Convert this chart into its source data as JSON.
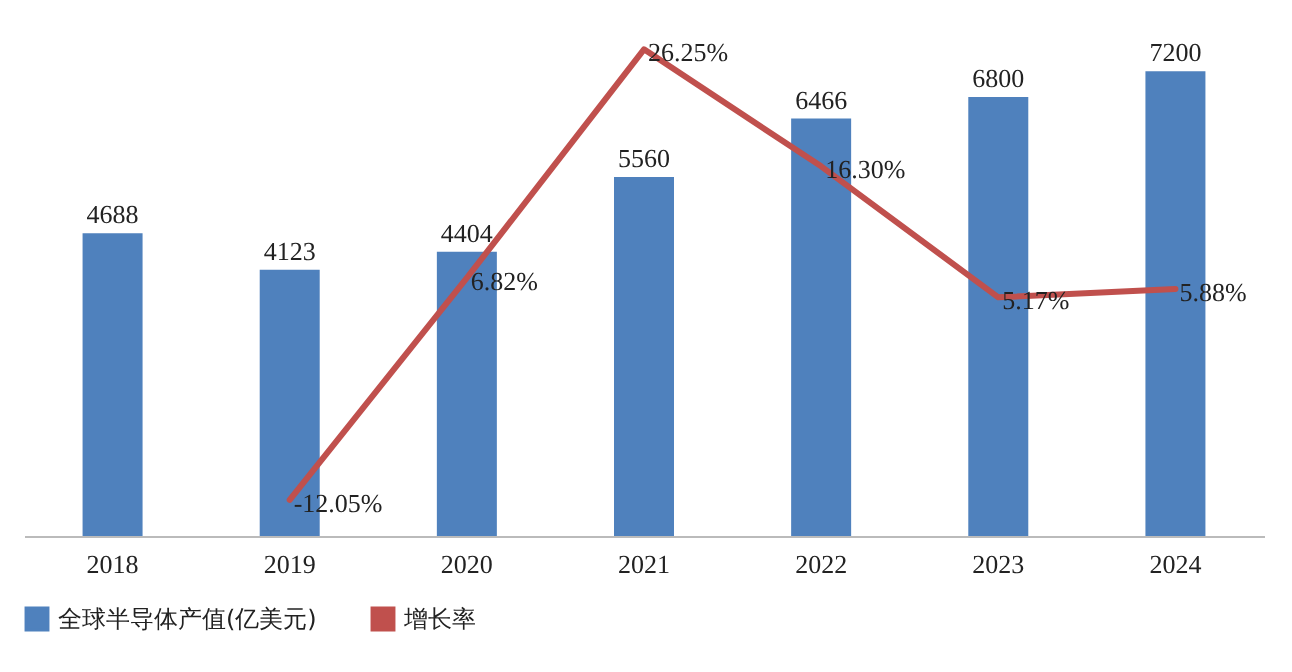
{
  "chart_data": {
    "type": "bar",
    "categories": [
      "2018",
      "2019",
      "2020",
      "2021",
      "2022",
      "2023",
      "2024"
    ],
    "legend": "bottom",
    "series": [
      {
        "name": "全球半导体产值(亿美元)",
        "color": "#4f81bd",
        "values": [
          4688,
          4123,
          4404,
          5560,
          6466,
          6800,
          7200
        ],
        "value_labels": [
          "4688",
          "4123",
          "4404",
          "5560",
          "6466",
          "6800",
          "7200"
        ]
      },
      {
        "name": "增长率",
        "type": "line",
        "axis": "y2",
        "color": "#c0504d",
        "values": [
          null,
          -12.05,
          6.82,
          26.25,
          16.3,
          5.17,
          5.88
        ],
        "value_labels": [
          null,
          "-12.05%",
          "6.82%",
          "26.25%",
          "16.30%",
          "5.17%",
          "5.88%"
        ]
      }
    ]
  }
}
